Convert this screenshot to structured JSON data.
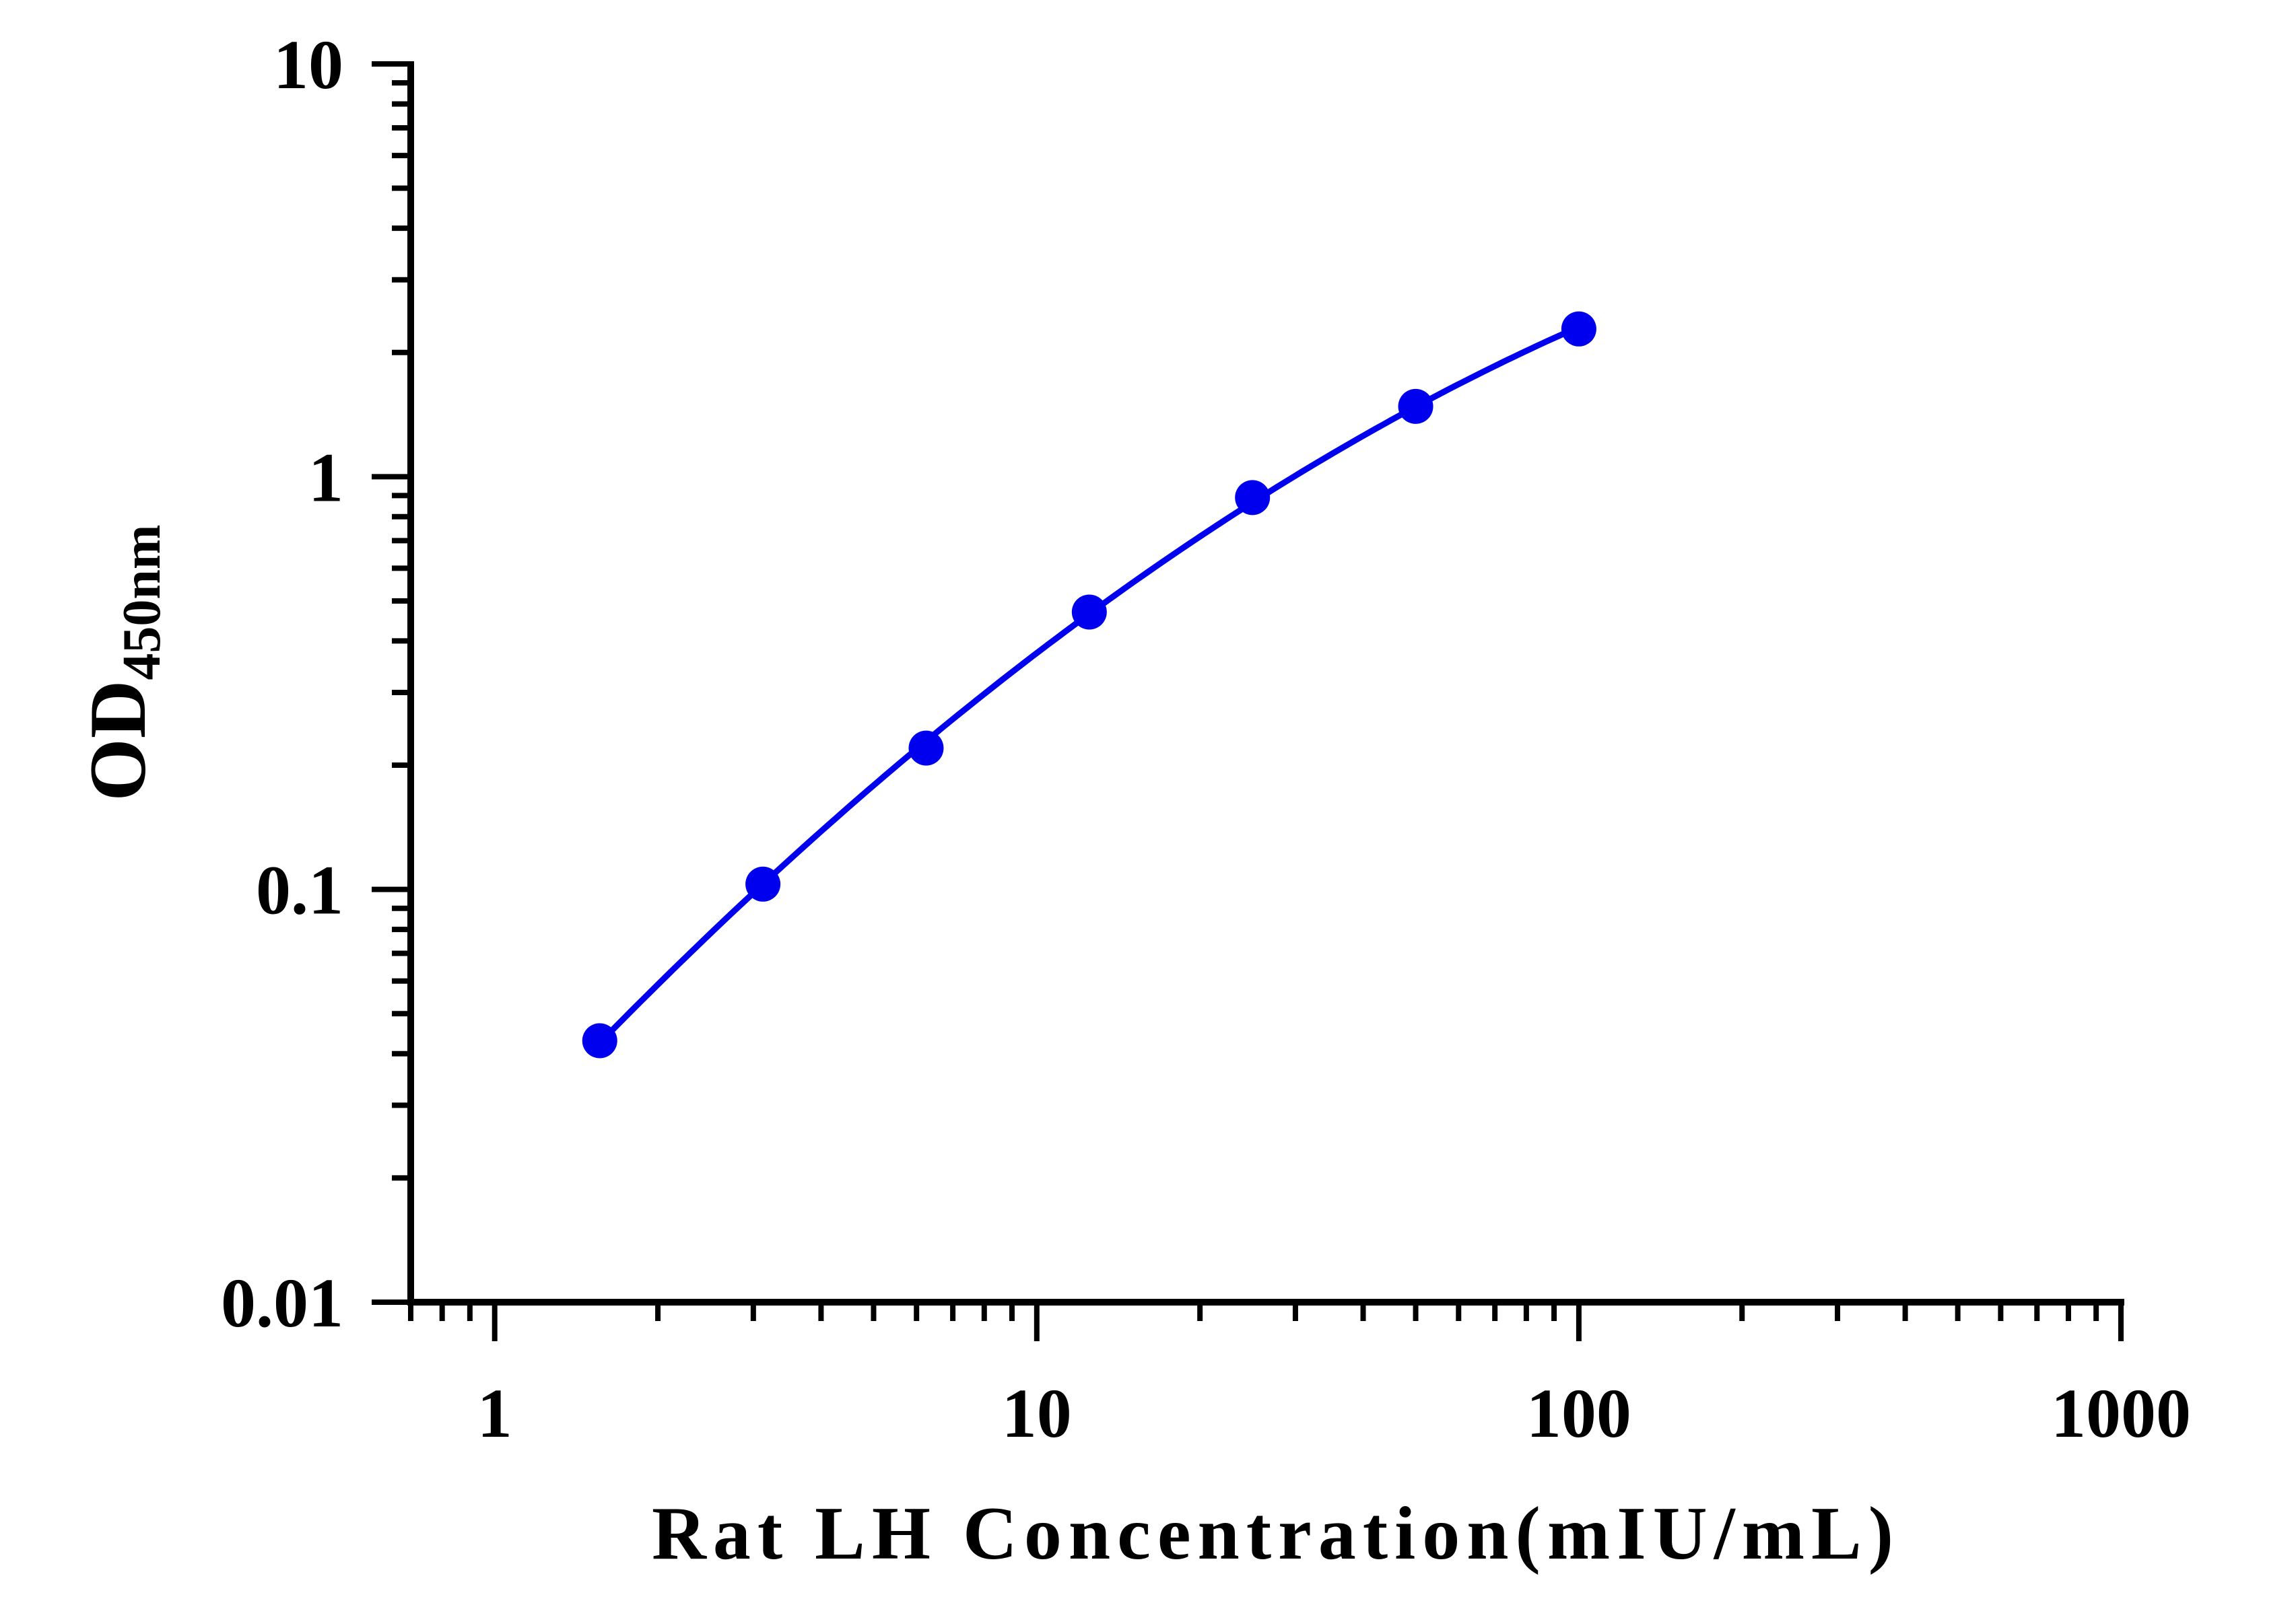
{
  "chart_data": {
    "type": "scatter",
    "xlabel": "Rat LH Concentration(mIU/mL)",
    "ylabel": "OD",
    "ylabel_subscript": "450nm",
    "x_scale": "log",
    "y_scale": "log",
    "xlim": [
      0.7,
      1000
    ],
    "ylim": [
      0.01,
      10
    ],
    "x_ticks": [
      1,
      10,
      100,
      1000
    ],
    "x_tick_labels": [
      "1",
      "10",
      "100",
      "1000"
    ],
    "y_ticks": [
      0.01,
      0.1,
      1,
      10
    ],
    "y_tick_labels": [
      "0.01",
      "0.1",
      "1",
      "10"
    ],
    "grid": false,
    "legend": "none",
    "series": [
      {
        "x": [
          1.5625,
          3.125,
          6.25,
          12.5,
          25,
          50,
          100
        ],
        "y": [
          0.043,
          0.103,
          0.22,
          0.47,
          0.89,
          1.48,
          2.28
        ],
        "fit_curve": true,
        "color": "#0000EE"
      }
    ],
    "fit_x_range": [
      1.5625,
      100
    ]
  }
}
